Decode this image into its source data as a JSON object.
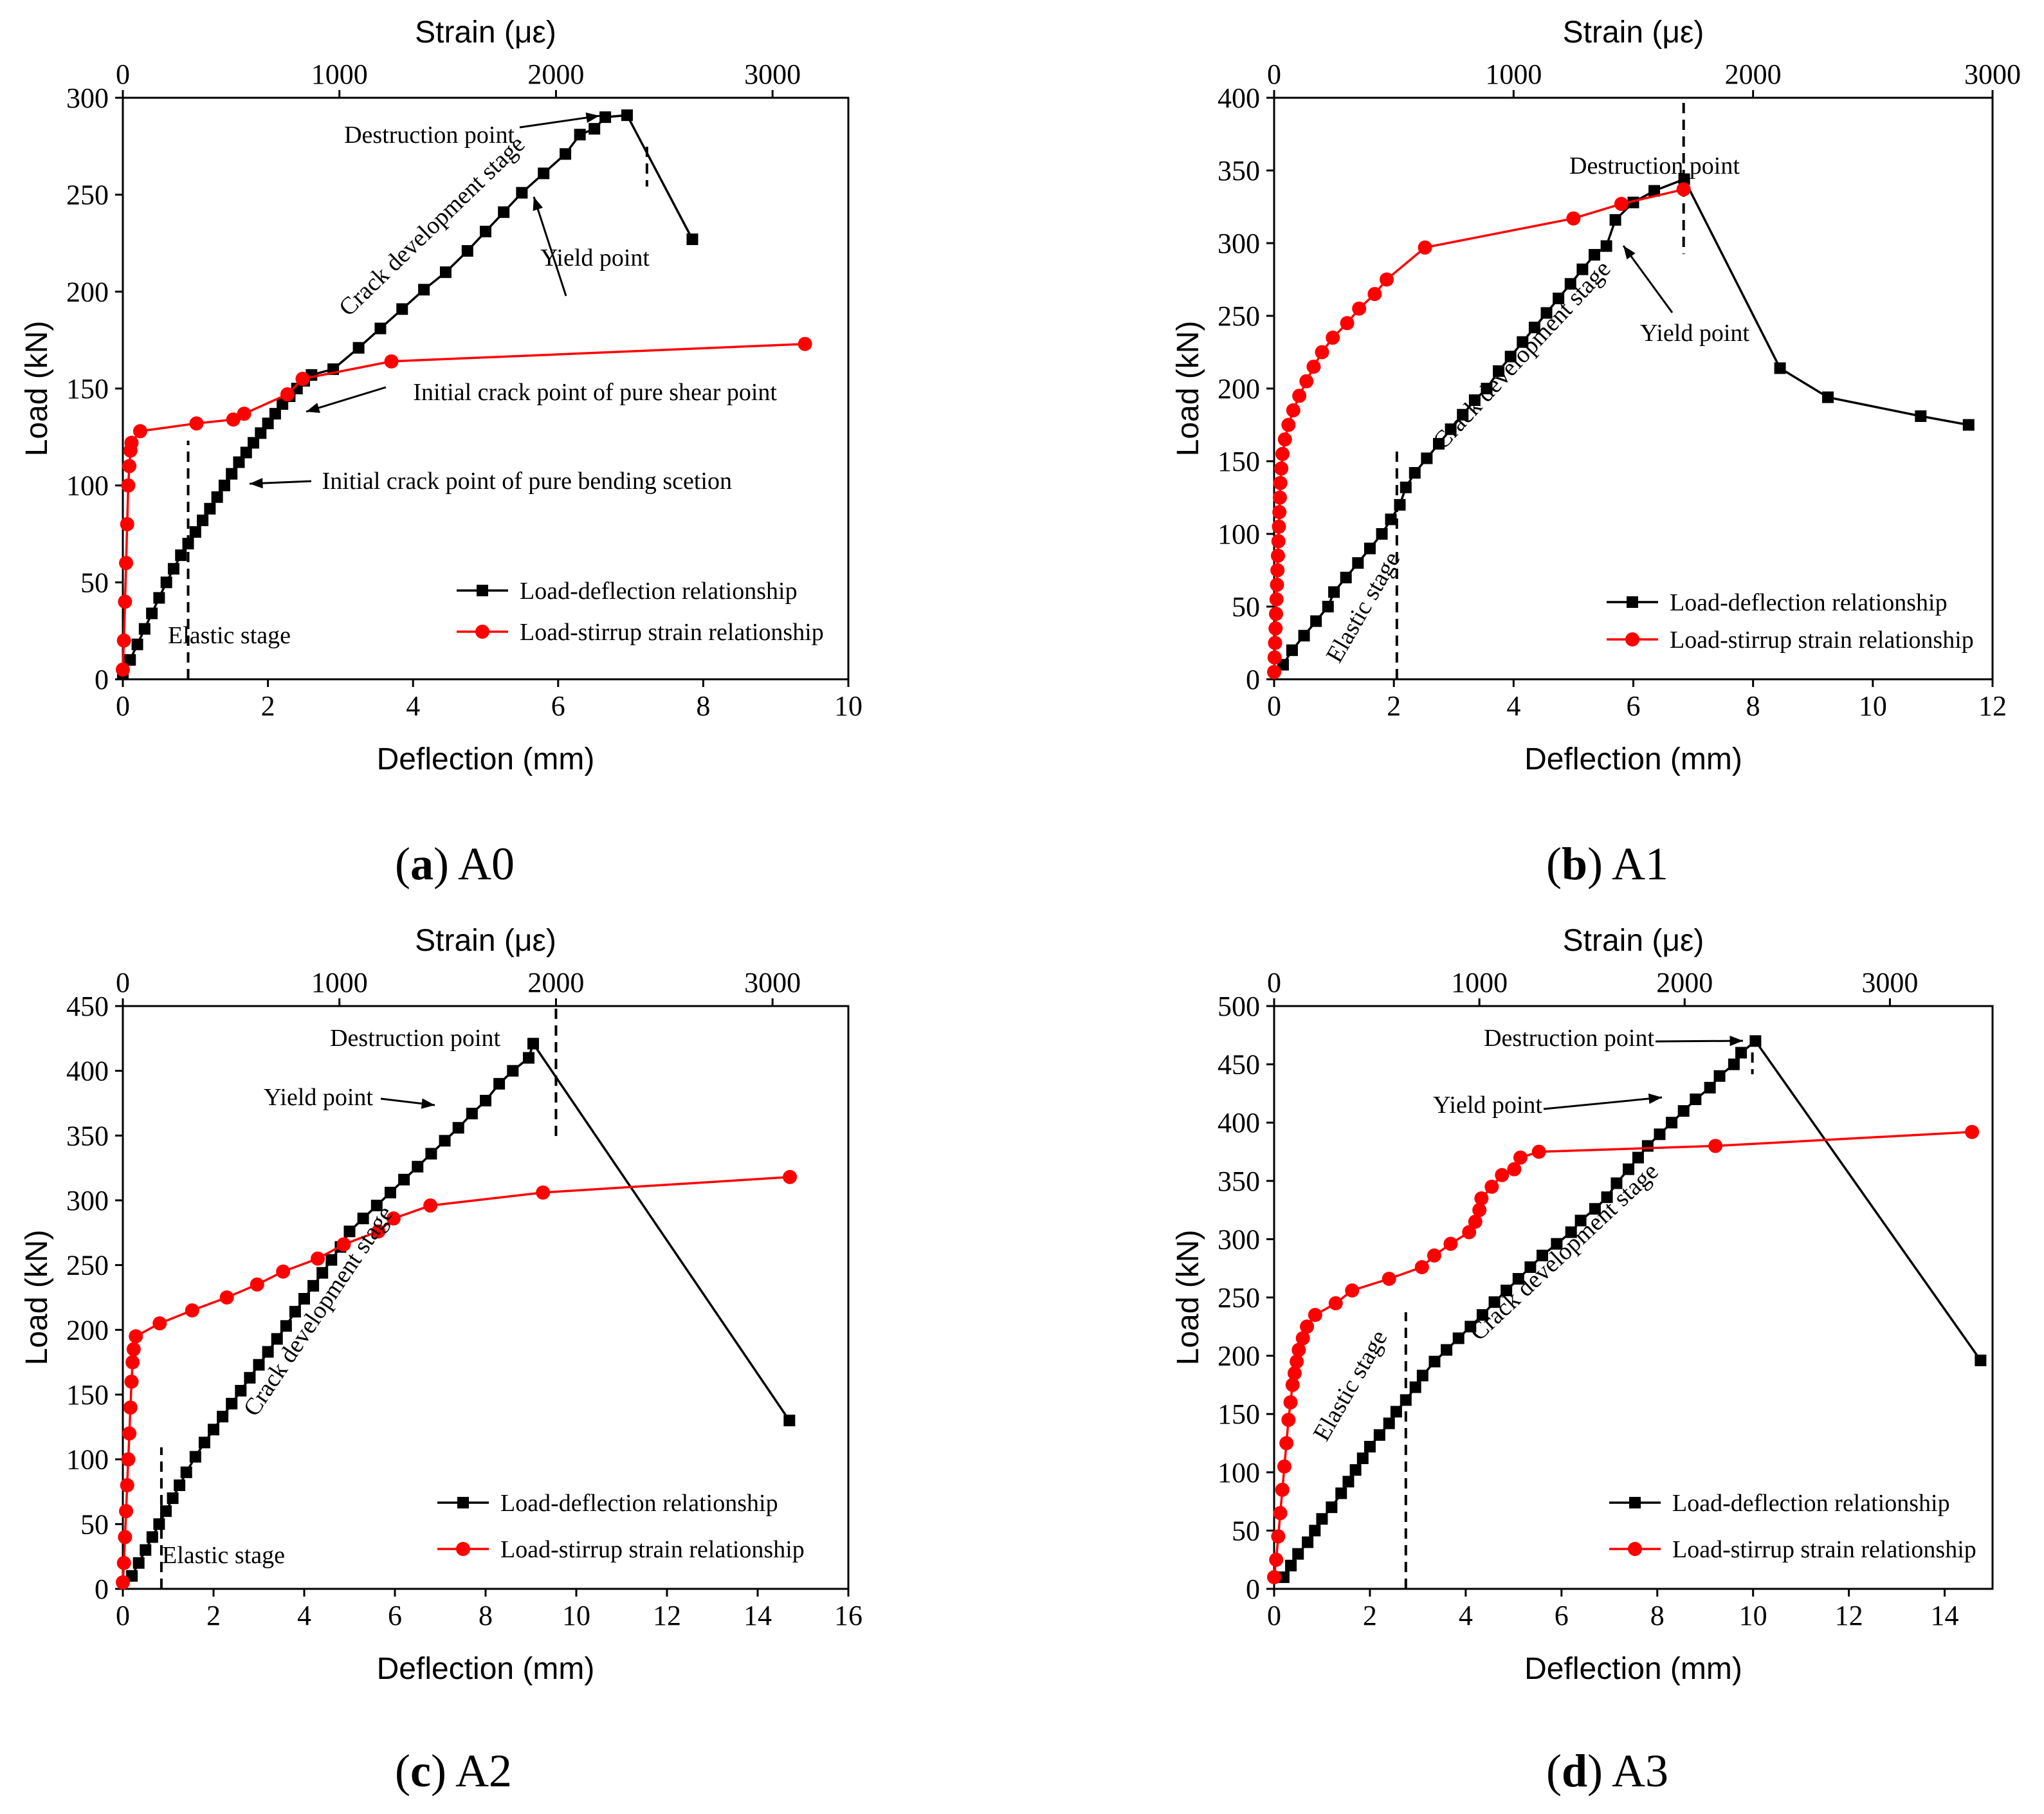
{
  "figure": {
    "background": "#ffffff",
    "axis_color": "#000000",
    "series_colors": [
      "#000000",
      "#ff0000"
    ]
  },
  "captions": [
    {
      "letter": "a",
      "label": "A0"
    },
    {
      "letter": "b",
      "label": "A1"
    },
    {
      "letter": "c",
      "label": "A2"
    },
    {
      "letter": "d",
      "label": "A3"
    }
  ],
  "chart_data": [
    {
      "id": "A0",
      "type": "line",
      "xlabel": "Deflection (mm)",
      "ylabel": "Load (kN)",
      "x2label": "Strain (με)",
      "xlim": [
        0,
        10
      ],
      "x2lim": [
        0,
        3350
      ],
      "ylim": [
        0,
        300
      ],
      "xticks": [
        0,
        2,
        4,
        6,
        8,
        10
      ],
      "x2ticks": [
        0,
        1000,
        2000,
        3000
      ],
      "yticks": [
        0,
        50,
        100,
        150,
        200,
        250,
        300
      ],
      "legend_position": "lower-right",
      "series": [
        {
          "name": "Load-deflection relationship",
          "color": "#000000",
          "marker": "square",
          "axis": "bottom",
          "x": [
            0,
            0.1,
            0.2,
            0.3,
            0.4,
            0.5,
            0.6,
            0.7,
            0.8,
            0.9,
            1.0,
            1.1,
            1.2,
            1.3,
            1.4,
            1.5,
            1.6,
            1.7,
            1.8,
            1.9,
            2.0,
            2.1,
            2.2,
            2.3,
            2.4,
            2.5,
            2.6,
            2.9,
            3.25,
            3.55,
            3.85,
            4.15,
            4.45,
            4.75,
            5.0,
            5.25,
            5.5,
            5.8,
            6.1,
            6.3,
            6.5,
            6.65,
            6.95,
            7.85
          ],
          "y": [
            3,
            10,
            18,
            26,
            34,
            42,
            50,
            57,
            64,
            70,
            76,
            82,
            88,
            94,
            100,
            106,
            112,
            117,
            122,
            127,
            132,
            137,
            142,
            146,
            150,
            154,
            157,
            160,
            171,
            181,
            191,
            201,
            210,
            221,
            231,
            241,
            251,
            261,
            271,
            281,
            284,
            290,
            291,
            227
          ]
        },
        {
          "name": "Load-stirrup strain relationship",
          "color": "#ff0000",
          "marker": "circle",
          "axis": "top",
          "x": [
            0,
            5,
            10,
            15,
            20,
            25,
            30,
            35,
            40,
            80,
            340,
            510,
            560,
            760,
            830,
            1240,
            3150
          ],
          "y": [
            5,
            20,
            40,
            60,
            80,
            100,
            110,
            118,
            122,
            128,
            132,
            134,
            137,
            147,
            155,
            164,
            173
          ]
        }
      ],
      "annotations": [
        {
          "text": "Destruction point"
        },
        {
          "text": "Crack development stage"
        },
        {
          "text": "Yield point"
        },
        {
          "text": "Initial crack point of pure shear point"
        },
        {
          "text": "Initial crack point of pure bending scetion"
        },
        {
          "text": "Elastic stage"
        }
      ]
    },
    {
      "id": "A1",
      "type": "line",
      "xlabel": "Deflection (mm)",
      "ylabel": "Load (kN)",
      "x2label": "Strain (με)",
      "xlim": [
        0,
        12
      ],
      "x2lim": [
        0,
        3000
      ],
      "ylim": [
        0,
        400
      ],
      "xticks": [
        0,
        2,
        4,
        6,
        8,
        10,
        12
      ],
      "x2ticks": [
        0,
        1000,
        2000,
        3000
      ],
      "yticks": [
        0,
        50,
        100,
        150,
        200,
        250,
        300,
        350,
        400
      ],
      "legend_position": "lower-right",
      "series": [
        {
          "name": "Load-deflection relationship",
          "color": "#000000",
          "marker": "square",
          "axis": "bottom",
          "x": [
            0.15,
            0.3,
            0.5,
            0.7,
            0.9,
            1.0,
            1.2,
            1.4,
            1.6,
            1.8,
            1.95,
            2.1,
            2.2,
            2.35,
            2.55,
            2.75,
            2.95,
            3.15,
            3.35,
            3.55,
            3.75,
            3.95,
            4.15,
            4.35,
            4.55,
            4.75,
            4.95,
            5.15,
            5.35,
            5.55,
            5.7,
            6.0,
            6.35,
            6.85,
            8.45,
            9.25,
            10.8,
            11.6
          ],
          "y": [
            10,
            20,
            30,
            40,
            50,
            60,
            70,
            80,
            90,
            100,
            110,
            120,
            132,
            142,
            152,
            162,
            172,
            182,
            192,
            200,
            212,
            222,
            232,
            242,
            252,
            262,
            272,
            282,
            292,
            298,
            316,
            328,
            336,
            344,
            214,
            194,
            181,
            175
          ]
        },
        {
          "name": "Load-stirrup strain relationship",
          "color": "#ff0000",
          "marker": "circle",
          "axis": "top",
          "x": [
            0,
            2,
            4,
            6,
            8,
            10,
            12,
            14,
            16,
            18,
            20,
            22,
            24,
            26,
            30,
            35,
            45,
            60,
            80,
            105,
            135,
            165,
            200,
            245,
            305,
            355,
            420,
            470,
            630,
            1250,
            1450,
            1710
          ],
          "y": [
            5,
            15,
            25,
            35,
            45,
            55,
            65,
            75,
            85,
            95,
            105,
            115,
            125,
            135,
            145,
            155,
            165,
            175,
            185,
            195,
            205,
            215,
            225,
            235,
            245,
            255,
            265,
            275,
            297,
            317,
            327,
            337
          ]
        }
      ],
      "annotations": [
        {
          "text": "Destruction point"
        },
        {
          "text": "Yield point"
        },
        {
          "text": "Crack development stage"
        },
        {
          "text": "Elastic stage"
        }
      ]
    },
    {
      "id": "A2",
      "type": "line",
      "xlabel": "Deflection (mm)",
      "ylabel": "Load (kN)",
      "x2label": "Strain (με)",
      "xlim": [
        0,
        16
      ],
      "x2lim": [
        0,
        3350
      ],
      "ylim": [
        0,
        450
      ],
      "xticks": [
        0,
        2,
        4,
        6,
        8,
        10,
        12,
        14,
        16
      ],
      "x2ticks": [
        0,
        1000,
        2000,
        3000
      ],
      "yticks": [
        0,
        50,
        100,
        150,
        200,
        250,
        300,
        350,
        400,
        450
      ],
      "legend_position": "lower-right",
      "series": [
        {
          "name": "Load-deflection relationship",
          "color": "#000000",
          "marker": "square",
          "axis": "bottom",
          "x": [
            0.2,
            0.35,
            0.5,
            0.65,
            0.8,
            0.95,
            1.1,
            1.25,
            1.4,
            1.6,
            1.8,
            2.0,
            2.2,
            2.4,
            2.6,
            2.8,
            3.0,
            3.2,
            3.4,
            3.6,
            3.8,
            4.0,
            4.2,
            4.4,
            4.6,
            4.8,
            5.0,
            5.3,
            5.6,
            5.9,
            6.2,
            6.5,
            6.8,
            7.1,
            7.4,
            7.7,
            8.0,
            8.3,
            8.6,
            8.95,
            9.05,
            14.7
          ],
          "y": [
            10,
            20,
            30,
            40,
            50,
            60,
            70,
            80,
            90,
            102,
            113,
            123,
            133,
            143,
            153,
            163,
            173,
            183,
            193,
            203,
            214,
            224,
            234,
            244,
            254,
            264,
            276,
            286,
            296,
            306,
            316,
            326,
            336,
            346,
            356,
            367,
            377,
            390,
            400,
            410,
            421,
            130
          ]
        },
        {
          "name": "Load-stirrup strain relationship",
          "color": "#ff0000",
          "marker": "circle",
          "axis": "top",
          "x": [
            0,
            5,
            10,
            15,
            20,
            25,
            30,
            35,
            40,
            45,
            50,
            60,
            170,
            320,
            480,
            620,
            740,
            900,
            1020,
            1180,
            1250,
            1420,
            1940,
            3080
          ],
          "y": [
            5,
            20,
            40,
            60,
            80,
            100,
            120,
            140,
            160,
            175,
            185,
            195,
            205,
            215,
            225,
            235,
            245,
            255,
            266,
            276,
            286,
            296,
            306,
            318
          ]
        }
      ],
      "annotations": [
        {
          "text": "Destruction point"
        },
        {
          "text": "Yield point"
        },
        {
          "text": "Crack development stage"
        },
        {
          "text": "Elastic stage"
        }
      ]
    },
    {
      "id": "A3",
      "type": "line",
      "xlabel": "Deflection (mm)",
      "ylabel": "Load (kN)",
      "x2label": "Strain (με)",
      "xlim": [
        0,
        15
      ],
      "x2lim": [
        0,
        3500
      ],
      "ylim": [
        0,
        500
      ],
      "xticks": [
        0,
        2,
        4,
        6,
        8,
        10,
        12,
        14
      ],
      "x2ticks": [
        0,
        1000,
        2000,
        3000
      ],
      "yticks": [
        0,
        50,
        100,
        150,
        200,
        250,
        300,
        350,
        400,
        450,
        500
      ],
      "legend_position": "lower-right",
      "series": [
        {
          "name": "Load-deflection relationship",
          "color": "#000000",
          "marker": "square",
          "axis": "bottom",
          "x": [
            0.2,
            0.35,
            0.5,
            0.7,
            0.85,
            1.0,
            1.2,
            1.4,
            1.55,
            1.7,
            1.85,
            2.0,
            2.2,
            2.4,
            2.55,
            2.75,
            2.95,
            3.1,
            3.35,
            3.6,
            3.85,
            4.1,
            4.35,
            4.6,
            4.85,
            5.1,
            5.35,
            5.6,
            5.9,
            6.2,
            6.4,
            6.7,
            6.95,
            7.15,
            7.4,
            7.6,
            7.8,
            8.05,
            8.3,
            8.55,
            8.8,
            9.1,
            9.3,
            9.6,
            9.75,
            10.05,
            14.75
          ],
          "y": [
            10,
            20,
            30,
            40,
            50,
            60,
            70,
            82,
            92,
            102,
            112,
            122,
            132,
            142,
            152,
            162,
            173,
            183,
            195,
            205,
            215,
            225,
            235,
            246,
            256,
            266,
            276,
            286,
            296,
            306,
            316,
            326,
            336,
            348,
            360,
            370,
            380,
            390,
            400,
            410,
            420,
            430,
            440,
            450,
            460,
            470,
            196
          ]
        },
        {
          "name": "Load-stirrup strain relationship",
          "color": "#ff0000",
          "marker": "circle",
          "axis": "top",
          "x": [
            0,
            10,
            20,
            30,
            40,
            50,
            60,
            70,
            80,
            90,
            100,
            110,
            120,
            140,
            160,
            200,
            300,
            380,
            560,
            720,
            780,
            860,
            950,
            980,
            1000,
            1010,
            1060,
            1110,
            1170,
            1200,
            1290,
            2150,
            3400
          ],
          "y": [
            10,
            25,
            45,
            65,
            85,
            105,
            125,
            145,
            160,
            175,
            185,
            195,
            205,
            215,
            225,
            235,
            245,
            256,
            266,
            276,
            286,
            296,
            306,
            315,
            325,
            335,
            345,
            355,
            360,
            370,
            375,
            380,
            392
          ]
        }
      ],
      "annotations": [
        {
          "text": "Destruction point"
        },
        {
          "text": "Yield point"
        },
        {
          "text": "Crack development stage"
        },
        {
          "text": "Elastic stage"
        }
      ]
    }
  ]
}
